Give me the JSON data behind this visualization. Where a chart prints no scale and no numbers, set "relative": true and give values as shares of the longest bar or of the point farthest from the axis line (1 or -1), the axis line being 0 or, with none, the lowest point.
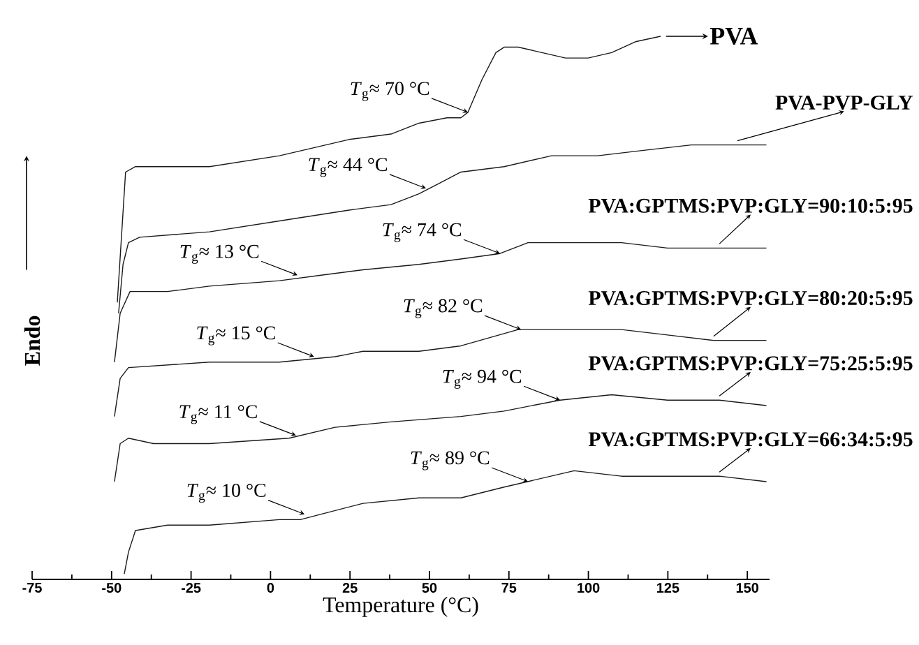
{
  "chart_data": {
    "type": "line",
    "relative": true,
    "xlabel": "Temperature (°C)",
    "ylabel": "Endo",
    "xlim": [
      -75,
      157
    ],
    "xticks": [
      -75,
      -50,
      -25,
      0,
      25,
      50,
      75,
      100,
      125,
      150
    ],
    "series": [
      {
        "name": "PVA",
        "color": "#1a1a1a",
        "x": [
          -48.2,
          -45.6,
          -42.5,
          -36.8,
          -19.2,
          2.8,
          24.7,
          37.9,
          46.7,
          55.5,
          59.9,
          62.1,
          66.5,
          70.9,
          73.5,
          77.9,
          85.4,
          92.8,
          99.9,
          107.3,
          114.8,
          122.7
        ],
        "values": [
          0.51,
          0.75,
          0.76,
          0.76,
          0.76,
          0.78,
          0.81,
          0.82,
          0.84,
          0.85,
          0.85,
          0.86,
          0.92,
          0.97,
          0.98,
          0.98,
          0.97,
          0.96,
          0.96,
          0.97,
          0.99,
          1.0
        ]
      },
      {
        "name": "PVA-PVP-GLY",
        "color": "#1a1a1a",
        "x": [
          -47.8,
          -46.4,
          -44.7,
          -41.2,
          -19.2,
          2.8,
          24.7,
          37.9,
          46.7,
          53.3,
          59.9,
          73.5,
          88.4,
          102.9,
          117.4,
          132.4,
          146.9,
          156
        ],
        "values": [
          0.49,
          0.58,
          0.62,
          0.63,
          0.64,
          0.66,
          0.68,
          0.69,
          0.71,
          0.73,
          0.75,
          0.76,
          0.78,
          0.78,
          0.79,
          0.8,
          0.8,
          0.8
        ]
      },
      {
        "name": "PVA:GPTMS:PVP:GLY=90:10:5:95",
        "color": "#1a1a1a",
        "x": [
          -49.1,
          -47.3,
          -44.2,
          -32.4,
          -19.2,
          2.8,
          15.9,
          29.1,
          46.7,
          59.9,
          72.2,
          81.0,
          94.2,
          110.4,
          124.9,
          141.2,
          156
        ],
        "values": [
          0.4,
          0.49,
          0.53,
          0.53,
          0.54,
          0.55,
          0.56,
          0.57,
          0.58,
          0.59,
          0.6,
          0.62,
          0.62,
          0.62,
          0.61,
          0.61,
          0.61
        ]
      },
      {
        "name": "PVA:GPTMS:PVP:GLY=80:20:5:95",
        "color": "#1a1a1a",
        "x": [
          -49.1,
          -47.3,
          -44.7,
          -19.2,
          2.8,
          20.3,
          29.1,
          46.7,
          59.9,
          77.9,
          85.4,
          92.8,
          110.4,
          124.9,
          139.4,
          156
        ],
        "values": [
          0.3,
          0.37,
          0.39,
          0.4,
          0.4,
          0.41,
          0.42,
          0.42,
          0.43,
          0.46,
          0.46,
          0.46,
          0.46,
          0.45,
          0.44,
          0.44
        ]
      },
      {
        "name": "PVA:GPTMS:PVP:GLY=75:25:5:95",
        "color": "#1a1a1a",
        "x": [
          -49.1,
          -47.3,
          -44.7,
          -36.8,
          -19.2,
          5.8,
          20.3,
          37.9,
          59.9,
          73.5,
          91.1,
          107.3,
          124.9,
          141.2,
          156
        ],
        "values": [
          0.18,
          0.25,
          0.26,
          0.25,
          0.25,
          0.26,
          0.28,
          0.29,
          0.3,
          0.31,
          0.33,
          0.34,
          0.33,
          0.33,
          0.32
        ]
      },
      {
        "name": "PVA:GPTMS:PVP:GLY=66:34:5:95",
        "color": "#1a1a1a",
        "x": [
          -46.0,
          -44.7,
          -42.5,
          -32.4,
          -19.2,
          2.8,
          9.4,
          15.9,
          29.1,
          46.7,
          59.9,
          73.5,
          95.5,
          110.4,
          124.9,
          141.2,
          156
        ],
        "values": [
          0.01,
          0.05,
          0.09,
          0.1,
          0.1,
          0.11,
          0.11,
          0.12,
          0.14,
          0.15,
          0.15,
          0.17,
          0.2,
          0.19,
          0.19,
          0.19,
          0.18
        ]
      }
    ],
    "annotations": [
      {
        "text": "*T*$_{g}$≈ 70 °C",
        "x": 62.1,
        "y": 0.86
      },
      {
        "text": "*T*$_{g}$≈ 44 °C",
        "x": 48.9,
        "y": 0.72
      },
      {
        "text": "*T*$_{g}$≈ 13 °C",
        "x": 8.5,
        "y": 0.56
      },
      {
        "text": "*T*$_{g}$≈ 74 °C",
        "x": 72.2,
        "y": 0.6
      },
      {
        "text": "*T*$_{g}$≈ 15 °C",
        "x": 13.7,
        "y": 0.41
      },
      {
        "text": "*T*$_{g}$≈ 82 °C",
        "x": 78.8,
        "y": 0.46
      },
      {
        "text": "*T*$_{g}$≈ 11 °C",
        "x": 8.0,
        "y": 0.265
      },
      {
        "text": "*T*$_{g}$≈ 94 °C",
        "x": 91.1,
        "y": 0.33
      },
      {
        "text": "*T*$_{g}$≈ 10 °C",
        "x": 10.7,
        "y": 0.12
      },
      {
        "text": "*T*$_{g}$≈ 89 °C",
        "x": 81.0,
        "y": 0.18
      }
    ]
  }
}
